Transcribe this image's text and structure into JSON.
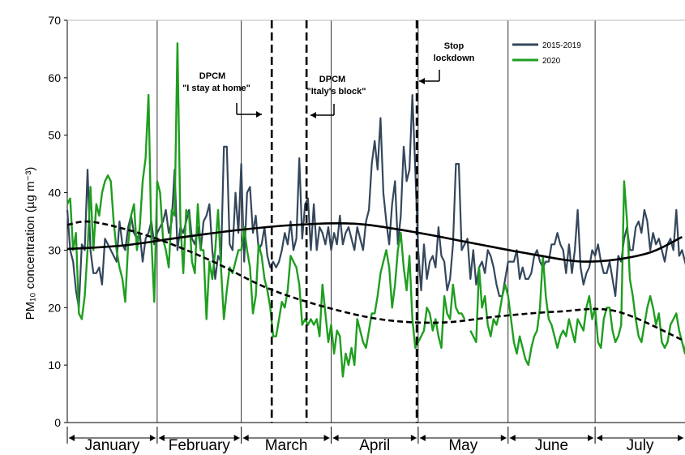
{
  "chart_data": {
    "type": "line",
    "ylabel": "PM₁₀ concentration (µg m⁻³)",
    "ylim": [
      0,
      70
    ],
    "yticks": [
      "0",
      "10",
      "20",
      "30",
      "40",
      "50",
      "60",
      "70"
    ],
    "x_unit": "day of year",
    "months": [
      {
        "label": "January",
        "start": 1,
        "end": 31
      },
      {
        "label": "February",
        "start": 32,
        "end": 60
      },
      {
        "label": "March",
        "start": 61,
        "end": 91
      },
      {
        "label": "April",
        "start": 92,
        "end": 121
      },
      {
        "label": "May",
        "start": 122,
        "end": 152
      },
      {
        "label": "June",
        "start": 153,
        "end": 182
      },
      {
        "label": "July",
        "start": 183,
        "end": 213
      }
    ],
    "annotations": [
      {
        "line1": "DPCM",
        "line2": "\"I stay at home\"",
        "day": 71
      },
      {
        "line1": "DPCM",
        "line2": "\"Italy's block\"",
        "day": 83
      },
      {
        "line1": "Stop",
        "line2": "lockdown",
        "day": 121
      }
    ],
    "colors": {
      "s2015_2019": "#34475c",
      "s2020": "#1f9e1f",
      "trend": "#000000",
      "grid": "#000000"
    },
    "series": [
      {
        "name": "2015-2019",
        "color": "#34475c",
        "values": [
          37,
          30,
          28,
          23,
          20,
          31,
          30,
          44,
          30,
          26,
          26,
          27,
          24,
          32,
          31,
          30,
          29,
          28,
          35,
          31,
          30,
          34,
          36,
          33,
          32,
          33,
          28,
          32,
          33,
          35,
          31,
          33,
          34,
          35,
          37,
          33,
          35,
          44,
          30,
          34,
          33,
          35,
          37,
          32,
          31,
          34,
          30,
          35,
          36,
          38,
          30,
          25,
          29,
          28,
          48,
          48,
          31,
          30,
          40,
          33,
          45,
          28,
          40,
          41,
          33,
          36,
          30,
          31,
          34,
          29,
          27,
          28,
          27,
          28,
          30,
          33,
          31,
          35,
          30,
          32,
          46,
          32,
          38,
          39,
          30,
          38,
          30,
          34,
          33,
          31,
          34,
          30,
          33,
          31,
          36,
          31,
          33,
          34,
          32,
          30,
          34,
          32,
          30,
          35,
          37,
          45,
          49,
          44,
          53,
          40,
          35,
          31,
          38,
          42,
          31,
          36,
          48,
          42,
          44,
          57,
          44,
          30,
          23,
          31,
          25,
          28,
          29,
          27,
          34,
          29,
          28,
          23,
          25,
          31,
          45,
          45,
          30,
          31,
          32,
          25,
          30,
          24,
          27,
          28,
          26,
          30,
          29,
          27,
          24,
          22,
          22,
          25,
          28,
          28,
          28,
          30,
          25,
          27,
          25,
          25,
          26,
          29,
          30,
          28,
          27,
          28,
          28,
          31,
          31,
          33,
          31,
          30,
          26,
          31,
          26,
          30,
          37,
          27,
          24,
          26,
          27,
          30,
          29,
          31,
          28,
          26,
          26,
          28,
          25,
          22,
          29,
          28,
          32,
          34,
          30,
          30,
          34,
          35,
          33,
          37,
          35,
          30,
          33,
          31,
          32,
          30,
          28,
          31,
          32,
          30,
          37,
          29,
          30,
          28,
          26,
          27,
          28
        ],
        "gaps": []
      },
      {
        "name": "2020",
        "color": "#1f9e1f",
        "values": [
          38,
          39,
          30,
          33,
          19,
          18,
          22,
          30,
          41,
          30,
          38,
          36,
          40,
          42,
          43,
          42,
          35,
          30,
          27,
          25,
          21,
          31,
          36,
          38,
          30,
          34,
          42,
          46,
          57,
          32,
          21,
          42,
          40,
          32,
          30,
          27,
          37,
          36,
          66,
          35,
          26,
          37,
          36,
          28,
          26,
          38,
          30,
          30,
          18,
          28,
          25,
          30,
          37,
          27,
          18,
          23,
          27,
          26,
          28,
          30,
          30,
          34,
          30,
          27,
          19,
          22,
          31,
          29,
          25,
          23,
          20,
          15,
          15,
          18,
          21,
          20,
          23,
          29,
          28,
          27,
          24,
          17,
          18,
          17,
          18,
          17,
          18,
          15,
          24,
          19,
          14,
          17,
          12,
          16,
          15,
          8,
          12,
          10,
          13,
          10,
          18,
          16,
          14,
          13,
          16,
          19,
          19,
          22,
          26,
          28,
          30,
          27,
          20,
          24,
          30,
          33,
          27,
          23,
          29,
          18,
          13,
          14,
          15,
          16,
          20,
          19,
          16,
          18,
          15,
          13,
          22,
          19,
          18,
          24,
          20,
          19,
          19,
          18,
          18,
          16,
          15,
          14,
          27,
          20,
          22,
          17,
          15,
          18,
          17,
          19,
          22,
          24,
          22,
          18,
          14,
          12,
          15,
          13,
          11,
          10,
          13,
          15,
          16,
          20,
          29,
          22,
          18,
          17,
          15,
          13,
          15,
          16,
          15,
          18,
          16,
          14,
          18,
          17,
          16,
          20,
          22,
          18,
          20,
          14,
          13,
          18,
          20,
          20,
          16,
          14,
          15,
          17,
          42,
          35,
          25,
          22,
          18,
          15,
          14,
          17,
          20,
          22,
          20,
          17,
          19,
          14,
          13,
          14,
          17,
          18,
          19,
          16,
          14,
          12,
          18,
          17,
          16
        ],
        "gaps": [
          139
        ]
      },
      {
        "name": "",
        "style": "solid-trend",
        "color": "#000000",
        "control_days": [
          1,
          20,
          40,
          60,
          80,
          100,
          120,
          140,
          160,
          180,
          200,
          213
        ],
        "control_values": [
          30.2,
          30.8,
          32.2,
          33.5,
          34.4,
          34.6,
          33.2,
          31.3,
          29.4,
          28.0,
          29.3,
          32.3
        ]
      },
      {
        "name": "",
        "style": "dashed-trend",
        "color": "#000000",
        "control_days": [
          1,
          10,
          30,
          50,
          70,
          90,
          110,
          130,
          150,
          170,
          190,
          213
        ],
        "control_values": [
          34.4,
          34.9,
          32.3,
          28.3,
          23.4,
          20.1,
          17.9,
          17.4,
          18.5,
          19.3,
          19.4,
          14.4
        ]
      }
    ]
  }
}
